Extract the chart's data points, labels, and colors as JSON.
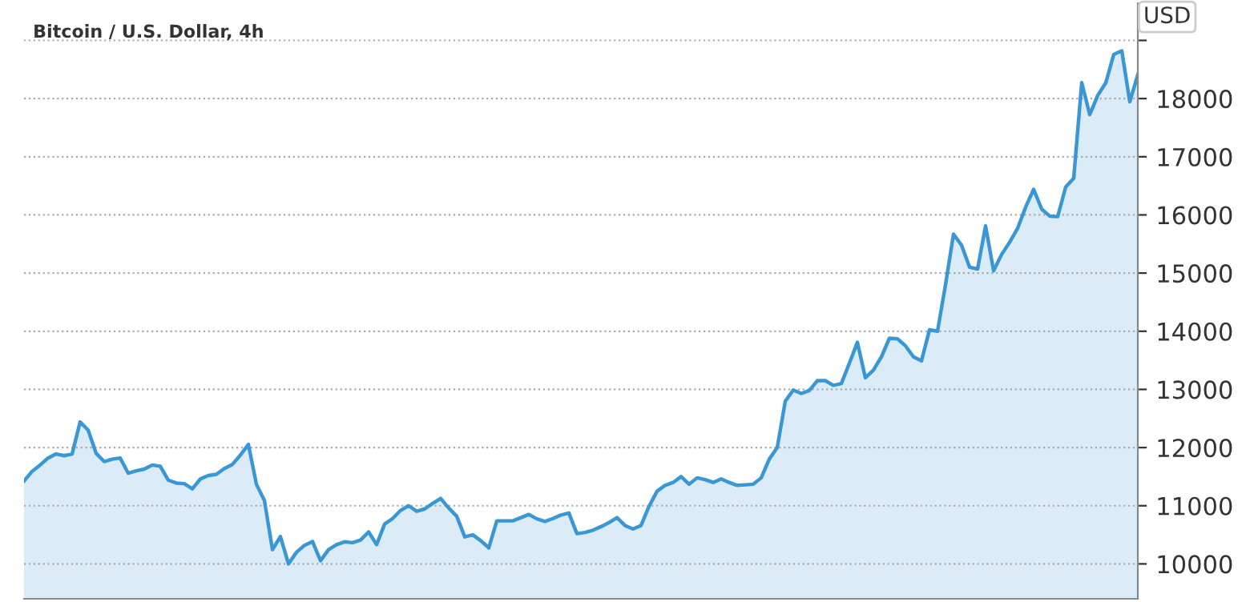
{
  "chart_data": {
    "type": "area",
    "title": "Bitcoin / U.S. Dollar, 4h",
    "ylabel": "USD",
    "categories": [
      null,
      null,
      null,
      null,
      null,
      null,
      null,
      null,
      null,
      null,
      null,
      null,
      null,
      null,
      null,
      null,
      null,
      null,
      null,
      null,
      null,
      null,
      null,
      null,
      null,
      null,
      null,
      null,
      null,
      null,
      null,
      null,
      null,
      null,
      null,
      null,
      null,
      null,
      null,
      null,
      null,
      null,
      null,
      null,
      null,
      null,
      null,
      null,
      null,
      null,
      null,
      null,
      null,
      null,
      null,
      null,
      null,
      null,
      null,
      null,
      null,
      null,
      null,
      null,
      null,
      null,
      null,
      null,
      null,
      null,
      null,
      null,
      null,
      null,
      null,
      null,
      null,
      null,
      null,
      null,
      null,
      null,
      null,
      null,
      null,
      null,
      null,
      null,
      null,
      null,
      null,
      null,
      null,
      null,
      null,
      null,
      null,
      null,
      null,
      null,
      null,
      null,
      null,
      null,
      null,
      null,
      null,
      null,
      null,
      null,
      null,
      null,
      null,
      null,
      null,
      null,
      null,
      null,
      null,
      null,
      null,
      null,
      null,
      null,
      null,
      null,
      null,
      null,
      null,
      null,
      null,
      null,
      null,
      null,
      null,
      null,
      null,
      null,
      null,
      null
    ],
    "series": [
      {
        "color": "#3a97d6",
        "values": [
          11425,
          11590,
          11700,
          11820,
          11890,
          11860,
          11890,
          12440,
          12300,
          11900,
          11760,
          11800,
          11820,
          11560,
          11600,
          11630,
          11700,
          11680,
          11440,
          11390,
          11380,
          11290,
          11460,
          11520,
          11540,
          11640,
          11710,
          11870,
          12055,
          11370,
          11090,
          10245,
          10470,
          10000,
          10200,
          10320,
          10385,
          10055,
          10245,
          10330,
          10380,
          10365,
          10410,
          10550,
          10330,
          10685,
          10780,
          10920,
          11000,
          10905,
          10945,
          11040,
          11125,
          10960,
          10820,
          10465,
          10500,
          10400,
          10275,
          10740,
          10740,
          10740,
          10795,
          10850,
          10775,
          10730,
          10780,
          10840,
          10875,
          10520,
          10540,
          10580,
          10640,
          10710,
          10795,
          10660,
          10600,
          10660,
          10990,
          11250,
          11350,
          11400,
          11500,
          11370,
          11480,
          11450,
          11400,
          11460,
          11400,
          11350,
          11360,
          11370,
          11480,
          11800,
          12000,
          12795,
          12990,
          12930,
          12980,
          13150,
          13150,
          13070,
          13100,
          13450,
          13810,
          13200,
          13330,
          13560,
          13880,
          13870,
          13750,
          13560,
          13490,
          14025,
          14000,
          14800,
          15670,
          15480,
          15100,
          15070,
          15810,
          15040,
          15320,
          15530,
          15770,
          16135,
          16440,
          16100,
          15980,
          15970,
          16480,
          16630,
          18275,
          17725,
          18055,
          18270,
          18760,
          18820,
          17945,
          18410
        ]
      }
    ],
    "ylim": [
      9400,
      19640
    ],
    "yticks": [
      10000,
      11000,
      12000,
      13000,
      14000,
      15000,
      16000,
      17000,
      18000,
      {
        "value": 19000,
        "label": null
      }
    ],
    "grid": "y"
  }
}
